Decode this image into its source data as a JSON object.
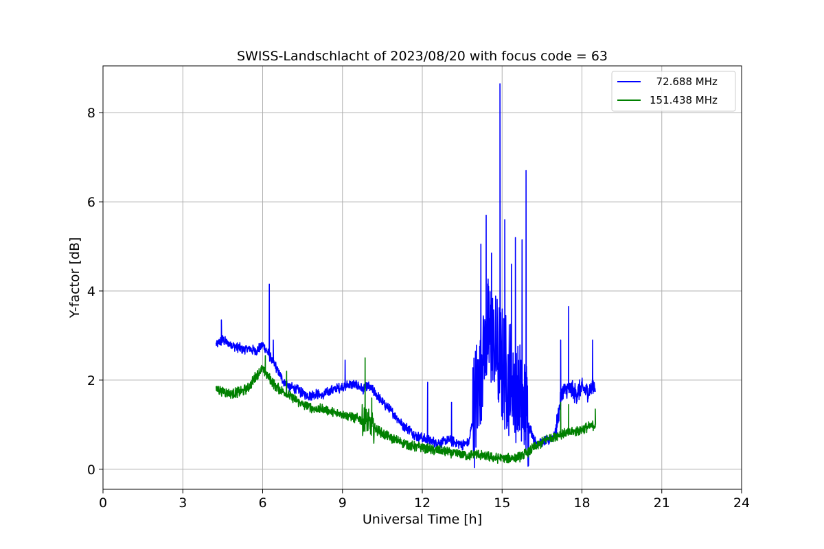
{
  "chart_data": {
    "type": "line",
    "title": "SWISS-Landschlacht of 2023/08/20 with focus code = 63",
    "xlabel": "Universal Time [h]",
    "ylabel": "Y-factor [dB]",
    "xlim": [
      0,
      24
    ],
    "ylim": [
      -0.45,
      9.05
    ],
    "xticks": [
      0,
      3,
      6,
      9,
      12,
      15,
      18,
      21,
      24
    ],
    "yticks": [
      0,
      2,
      4,
      6,
      8
    ],
    "grid": true,
    "legend_position": "top-right",
    "series": [
      {
        "name": "  72.688 MHz",
        "color": "#0000ff",
        "x": [
          4.25,
          4.5,
          4.75,
          5.0,
          5.25,
          5.5,
          5.75,
          6.0,
          6.25,
          6.5,
          6.75,
          7.0,
          7.25,
          7.5,
          7.75,
          8.0,
          8.25,
          8.5,
          8.75,
          9.0,
          9.25,
          9.5,
          9.75,
          10.0,
          10.25,
          10.5,
          10.75,
          11.0,
          11.25,
          11.5,
          11.75,
          12.0,
          12.25,
          12.5,
          12.75,
          13.0,
          13.25,
          13.5,
          13.75,
          14.0,
          14.25,
          14.5,
          14.75,
          15.0,
          15.25,
          15.5,
          15.75,
          16.0,
          16.25,
          16.5,
          16.75,
          17.0,
          17.25,
          17.5,
          17.75,
          18.0,
          18.25,
          18.5
        ],
        "y": [
          2.8,
          2.9,
          2.8,
          2.75,
          2.7,
          2.7,
          2.65,
          2.8,
          2.55,
          2.3,
          2.0,
          1.85,
          1.8,
          1.7,
          1.65,
          1.7,
          1.65,
          1.75,
          1.8,
          1.85,
          1.9,
          1.9,
          1.8,
          1.85,
          1.7,
          1.5,
          1.35,
          1.2,
          1.0,
          0.9,
          0.75,
          0.7,
          0.65,
          0.6,
          0.6,
          0.65,
          0.6,
          0.55,
          0.6,
          1.5,
          2.6,
          3.0,
          2.6,
          2.3,
          2.1,
          1.8,
          1.5,
          1.0,
          0.6,
          0.6,
          0.65,
          0.8,
          1.7,
          1.8,
          1.7,
          1.8,
          1.75,
          1.9
        ],
        "peaks": [
          [
            4.45,
            3.35
          ],
          [
            6.25,
            4.15
          ],
          [
            6.4,
            2.9
          ],
          [
            9.1,
            2.45
          ],
          [
            12.2,
            1.95
          ],
          [
            13.1,
            1.5
          ],
          [
            14.2,
            5.05
          ],
          [
            14.4,
            5.7
          ],
          [
            14.6,
            4.85
          ],
          [
            14.92,
            8.65
          ],
          [
            15.1,
            5.6
          ],
          [
            15.35,
            4.6
          ],
          [
            15.5,
            5.2
          ],
          [
            15.75,
            5.15
          ],
          [
            15.9,
            6.7
          ],
          [
            17.2,
            2.9
          ],
          [
            17.5,
            3.65
          ],
          [
            18.4,
            2.9
          ]
        ]
      },
      {
        "name": "151.438 MHz",
        "color": "#008000",
        "x": [
          4.25,
          4.5,
          4.75,
          5.0,
          5.25,
          5.5,
          5.75,
          6.0,
          6.25,
          6.5,
          6.75,
          7.0,
          7.25,
          7.5,
          7.75,
          8.0,
          8.25,
          8.5,
          8.75,
          9.0,
          9.25,
          9.5,
          9.75,
          10.0,
          10.25,
          10.5,
          10.75,
          11.0,
          11.25,
          11.5,
          11.75,
          12.0,
          12.25,
          12.5,
          12.75,
          13.0,
          13.25,
          13.5,
          13.75,
          14.0,
          14.25,
          14.5,
          14.75,
          15.0,
          15.25,
          15.5,
          15.75,
          16.0,
          16.25,
          16.5,
          16.75,
          17.0,
          17.25,
          17.5,
          17.75,
          18.0,
          18.25,
          18.5
        ],
        "y": [
          1.8,
          1.75,
          1.7,
          1.72,
          1.75,
          1.85,
          2.1,
          2.25,
          2.05,
          1.85,
          1.75,
          1.65,
          1.55,
          1.45,
          1.4,
          1.35,
          1.35,
          1.3,
          1.25,
          1.25,
          1.2,
          1.15,
          1.1,
          1.0,
          0.9,
          0.8,
          0.72,
          0.65,
          0.6,
          0.55,
          0.5,
          0.5,
          0.45,
          0.42,
          0.4,
          0.38,
          0.35,
          0.35,
          0.3,
          0.35,
          0.3,
          0.28,
          0.25,
          0.25,
          0.25,
          0.25,
          0.3,
          0.4,
          0.5,
          0.6,
          0.7,
          0.75,
          0.8,
          0.8,
          0.85,
          0.9,
          0.95,
          1.0
        ],
        "peaks": [
          [
            6.1,
            2.55
          ],
          [
            6.9,
            2.2
          ],
          [
            9.85,
            2.5
          ],
          [
            10.1,
            1.6
          ],
          [
            17.2,
            1.5
          ],
          [
            17.5,
            1.45
          ],
          [
            18.5,
            1.35
          ]
        ]
      }
    ]
  }
}
